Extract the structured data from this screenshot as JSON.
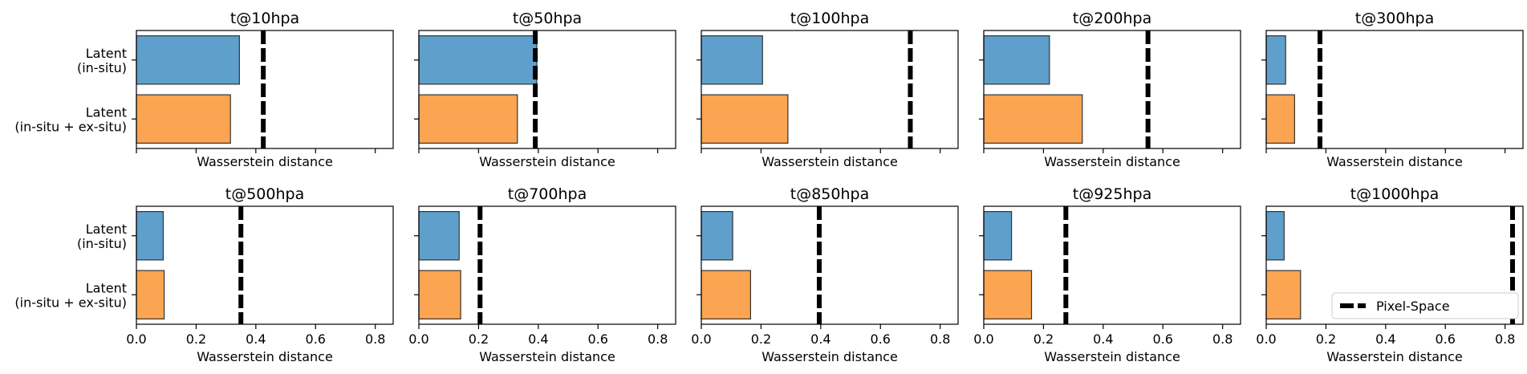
{
  "chart_data": {
    "type": "bar",
    "orientation": "horizontal",
    "shared_x": true,
    "xlim": [
      0.0,
      0.86
    ],
    "x_ticks": [
      "0.0",
      "0.2",
      "0.4",
      "0.6",
      "0.8"
    ],
    "xlabel": "Wasserstein distance",
    "categories": [
      "Latent\n(in-situ)",
      "Latent\n(in-situ + ex-situ)"
    ],
    "colors": {
      "in_situ": "#5f9fcc",
      "in_situ_ex_situ": "#fba552",
      "reference_line": "#000000"
    },
    "legend": {
      "label": "Pixel-Space",
      "placement": "lower-right",
      "panel_index": 9
    },
    "panels": [
      {
        "title": "t@10hpa",
        "values": [
          0.345,
          0.315
        ],
        "reference": 0.425
      },
      {
        "title": "t@50hpa",
        "values": [
          0.395,
          0.33
        ],
        "reference": 0.39
      },
      {
        "title": "t@100hpa",
        "values": [
          0.205,
          0.29
        ],
        "reference": 0.7
      },
      {
        "title": "t@200hpa",
        "values": [
          0.22,
          0.33
        ],
        "reference": 0.55
      },
      {
        "title": "t@300hpa",
        "values": [
          0.065,
          0.095
        ],
        "reference": 0.18
      },
      {
        "title": "t@500hpa",
        "values": [
          0.09,
          0.093
        ],
        "reference": 0.35
      },
      {
        "title": "t@700hpa",
        "values": [
          0.135,
          0.14
        ],
        "reference": 0.205
      },
      {
        "title": "t@850hpa",
        "values": [
          0.105,
          0.165
        ],
        "reference": 0.395
      },
      {
        "title": "t@925hpa",
        "values": [
          0.093,
          0.16
        ],
        "reference": 0.275
      },
      {
        "title": "t@1000hpa",
        "values": [
          0.06,
          0.115
        ],
        "reference": 0.825
      }
    ]
  }
}
